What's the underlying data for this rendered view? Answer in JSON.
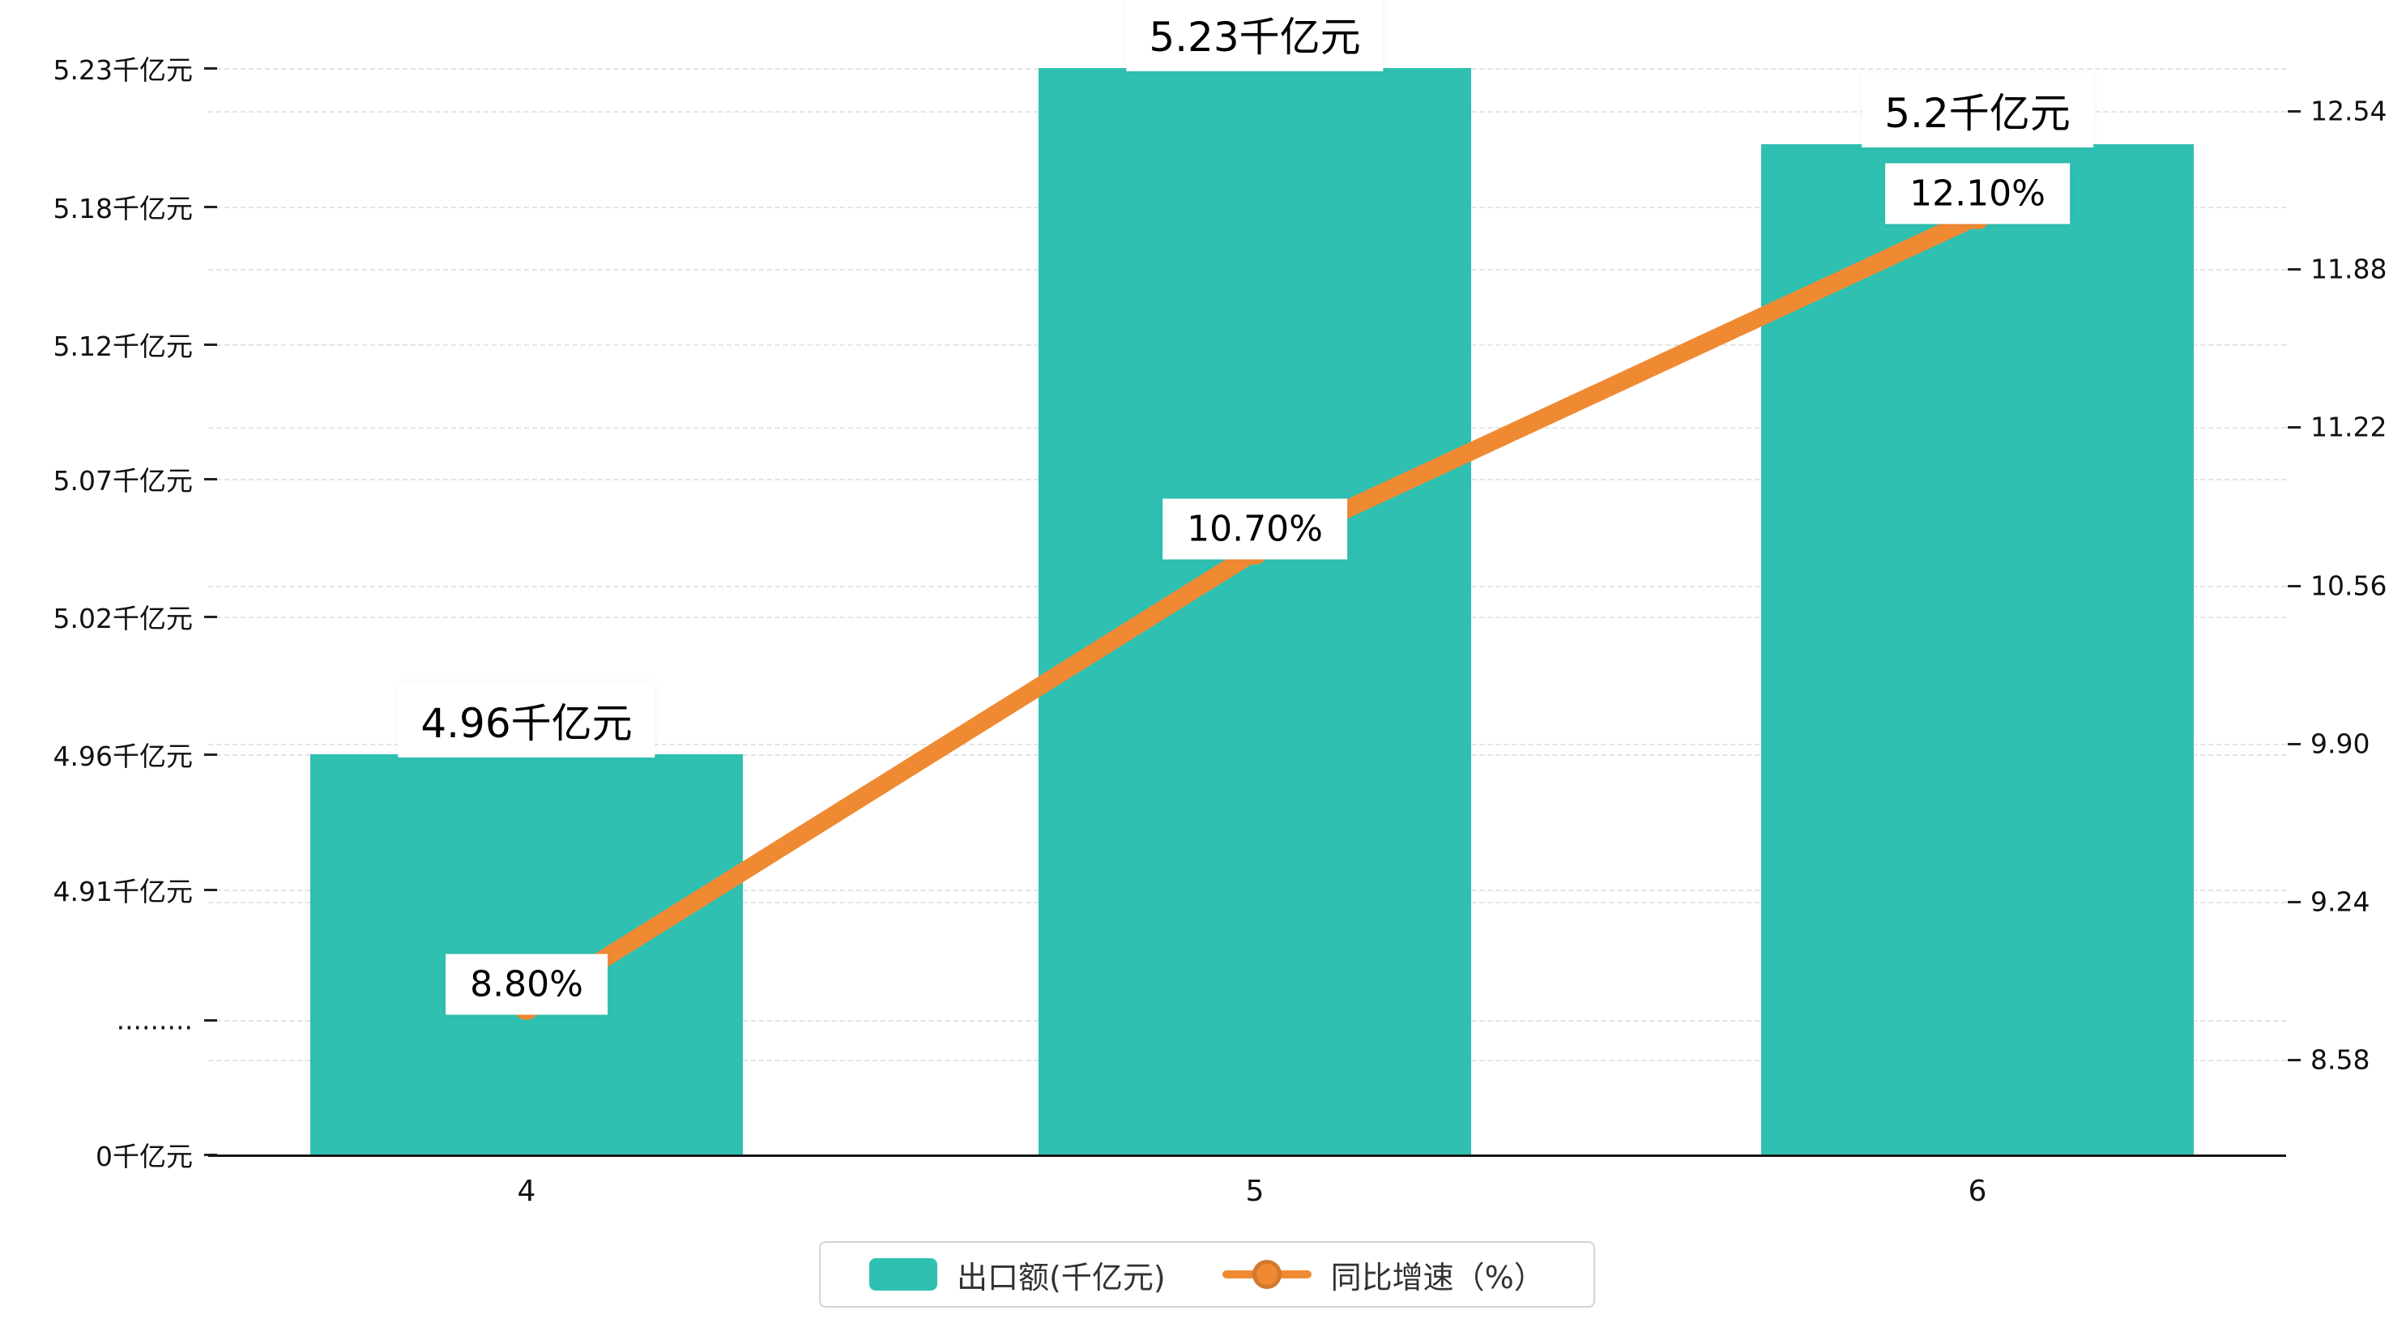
{
  "chart_data": {
    "type": "bar",
    "combo": "bar+line, dual y-axes",
    "categories": [
      "4",
      "5",
      "6"
    ],
    "series": [
      {
        "name": "出口额(千亿元)",
        "type": "bar",
        "axis": "left",
        "color": "#2fc0b1",
        "values": [
          4.96,
          5.23,
          5.2
        ],
        "labels": [
          "4.96千亿元",
          "5.23千亿元",
          "5.2千亿元"
        ]
      },
      {
        "name": "同比增速（%）",
        "type": "line",
        "axis": "right",
        "color": "#ef8a33",
        "values": [
          8.8,
          10.7,
          12.1
        ],
        "labels": [
          "8.80%",
          "10.70%",
          "12.10%"
        ]
      }
    ],
    "left_axis": {
      "unit": "千亿元",
      "ticks": [
        "5.23千亿元",
        "5.18千亿元",
        "5.12千亿元",
        "5.07千亿元",
        "5.02千亿元",
        "4.96千亿元",
        "4.91千亿元",
        ".........",
        "0千亿元"
      ]
    },
    "right_axis": {
      "unit": "%",
      "ticks": [
        "12.54",
        "11.88",
        "11.22",
        "10.56",
        "9.90",
        "9.24",
        "8.58"
      ]
    },
    "legend": {
      "items": [
        {
          "label": "出口额(千亿元)",
          "series": "bar"
        },
        {
          "label": "同比增速（%）",
          "series": "line"
        }
      ]
    },
    "grid": "dashed horizontal gridlines",
    "title": ""
  }
}
